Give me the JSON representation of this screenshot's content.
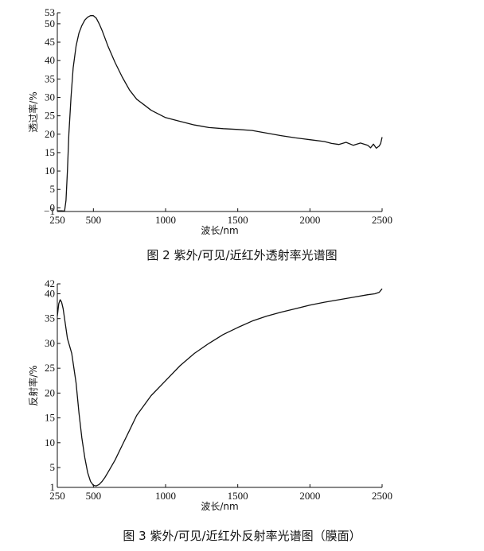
{
  "chart_data": [
    {
      "type": "line",
      "caption": "图 2   紫外/可见/近红外透射率光谱图",
      "xlabel": "波长/nm",
      "ylabel": "透过率/%",
      "xlim": [
        250,
        2500
      ],
      "ylim": [
        -1,
        53
      ],
      "x_ticks": [
        250,
        500,
        1000,
        1500,
        2000,
        2500
      ],
      "y_ticks": [
        -1,
        0,
        5,
        10,
        15,
        20,
        25,
        30,
        35,
        40,
        45,
        50,
        53
      ],
      "grid": false,
      "series": [
        {
          "x": [
            250,
            280,
            300,
            310,
            320,
            330,
            345,
            360,
            380,
            400,
            420,
            440,
            460,
            480,
            500,
            520,
            540,
            560,
            600,
            650,
            700,
            750,
            800,
            850,
            900,
            950,
            1000,
            1100,
            1200,
            1300,
            1400,
            1500,
            1600,
            1700,
            1800,
            1900,
            2000,
            2100,
            2150,
            2200,
            2250,
            2300,
            2350,
            2400,
            2420,
            2440,
            2460,
            2480,
            2490,
            2500
          ],
          "y": [
            -0.8,
            -0.8,
            -0.9,
            2,
            10,
            20,
            30,
            38,
            44,
            47.5,
            49.5,
            51,
            51.8,
            52.2,
            52.2,
            51.5,
            50,
            48.2,
            44,
            39.5,
            35.5,
            32,
            29.5,
            28,
            26.5,
            25.5,
            24.5,
            23.5,
            22.5,
            21.8,
            21.5,
            21.3,
            21,
            20.3,
            19.6,
            19,
            18.5,
            18,
            17.5,
            17.2,
            17.8,
            17.0,
            17.6,
            17.0,
            16.3,
            17.3,
            16.2,
            16.8,
            17.5,
            19.2
          ]
        }
      ]
    },
    {
      "type": "line",
      "caption": "图 3   紫外/可见/近红外反射率光谱图（膜面）",
      "xlabel": "波长/nm",
      "ylabel": "反射率/%",
      "xlim": [
        250,
        2500
      ],
      "ylim": [
        1,
        42
      ],
      "x_ticks": [
        250,
        500,
        1000,
        1500,
        2000,
        2500
      ],
      "y_ticks": [
        1,
        5,
        10,
        15,
        20,
        25,
        30,
        35,
        40,
        42
      ],
      "grid": false,
      "series": [
        {
          "x": [
            250,
            260,
            270,
            280,
            290,
            300,
            310,
            320,
            330,
            350,
            380,
            400,
            420,
            440,
            460,
            480,
            500,
            520,
            540,
            560,
            580,
            600,
            650,
            700,
            750,
            800,
            850,
            900,
            1000,
            1100,
            1200,
            1300,
            1400,
            1500,
            1600,
            1700,
            1800,
            1900,
            2000,
            2100,
            2200,
            2300,
            2400,
            2450,
            2480,
            2500
          ],
          "y": [
            35.5,
            38,
            38.8,
            38.3,
            37,
            35,
            33,
            31,
            30,
            28,
            22,
            16,
            11,
            7,
            4,
            2.2,
            1.4,
            1.3,
            1.6,
            2.2,
            3,
            4,
            6.5,
            9.5,
            12.5,
            15.5,
            17.5,
            19.5,
            22.5,
            25.5,
            28,
            30,
            31.8,
            33.2,
            34.5,
            35.5,
            36.3,
            37,
            37.7,
            38.3,
            38.8,
            39.3,
            39.8,
            40,
            40.3,
            41
          ]
        }
      ]
    }
  ]
}
